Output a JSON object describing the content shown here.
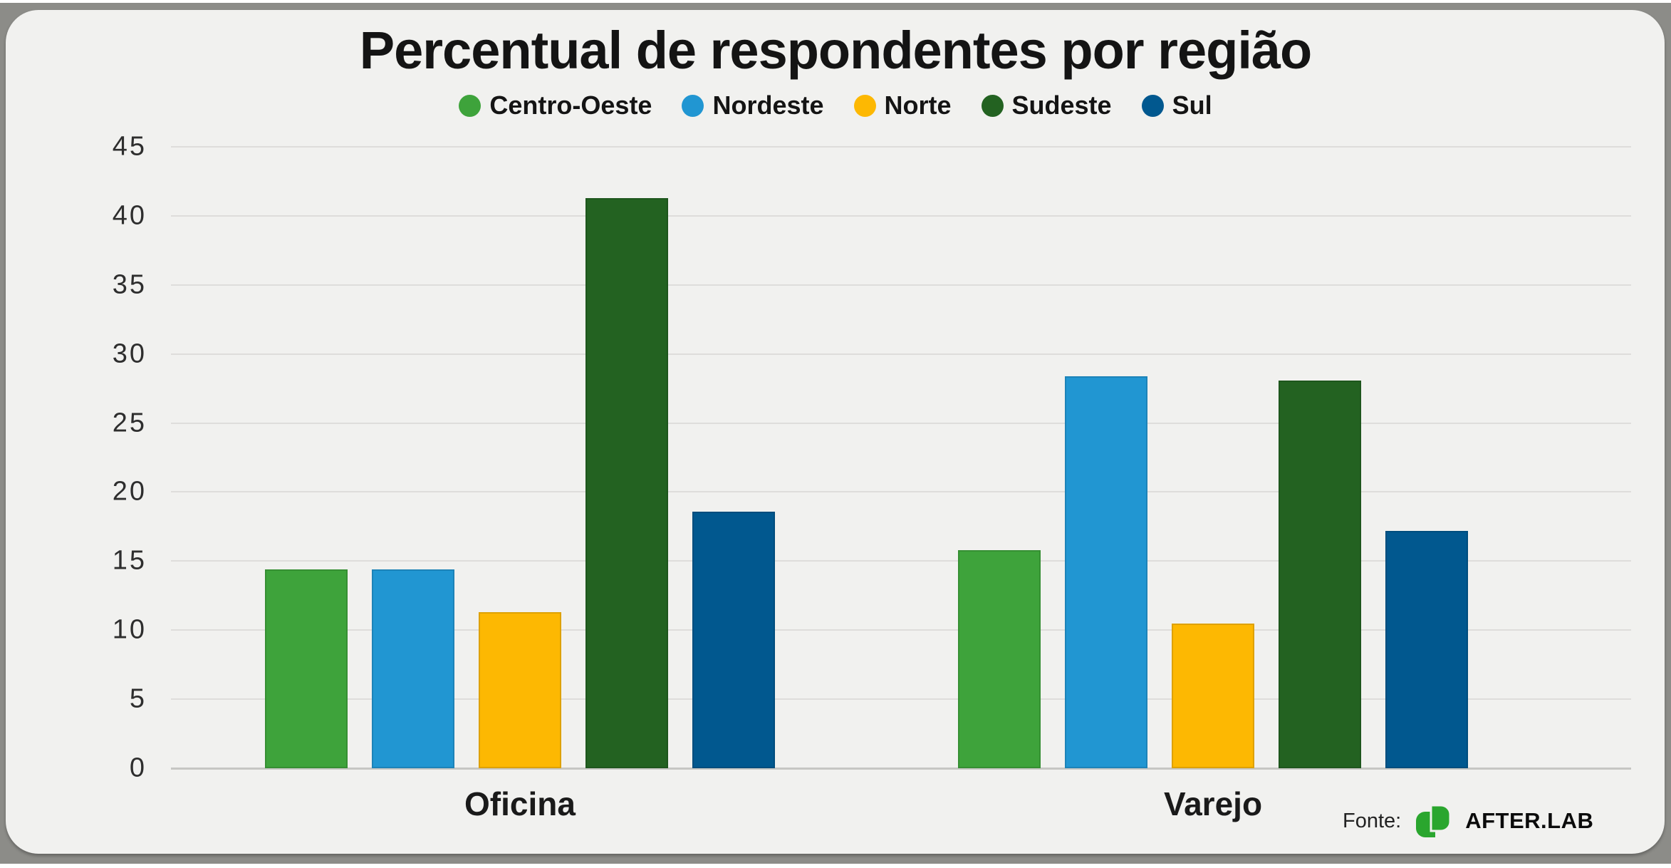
{
  "frame": {
    "border_color": "#8c8c88",
    "panel_color": "#f1f1ef"
  },
  "colors": {
    "gridline": "#dedddb",
    "axis_line": "#c6c6c3",
    "title_text": "#141414",
    "tick_text": "#2e2e2e"
  },
  "chart_data": {
    "type": "bar",
    "title": "Percentual de respondentes por região",
    "categories": [
      "Oficina",
      "Varejo"
    ],
    "series": [
      {
        "name": "Centro-Oeste",
        "color": "#3ea33b",
        "values": [
          14.4,
          15.8
        ]
      },
      {
        "name": "Nordeste",
        "color": "#2196d2",
        "values": [
          14.4,
          28.4
        ]
      },
      {
        "name": "Norte",
        "color": "#fdb802",
        "values": [
          11.3,
          10.5
        ]
      },
      {
        "name": "Sudeste",
        "color": "#236221",
        "values": [
          41.3,
          28.1
        ]
      },
      {
        "name": "Sul",
        "color": "#01588f",
        "values": [
          18.6,
          17.2
        ]
      }
    ],
    "ylim": [
      0,
      45
    ],
    "yticks": [
      0,
      5,
      10,
      15,
      20,
      25,
      30,
      35,
      40,
      45
    ],
    "grid": true,
    "legend_position": "top"
  },
  "footer": {
    "source_label": "Fonte:",
    "brand": "AFTER.LAB",
    "logo_color": "#2aa62e"
  }
}
